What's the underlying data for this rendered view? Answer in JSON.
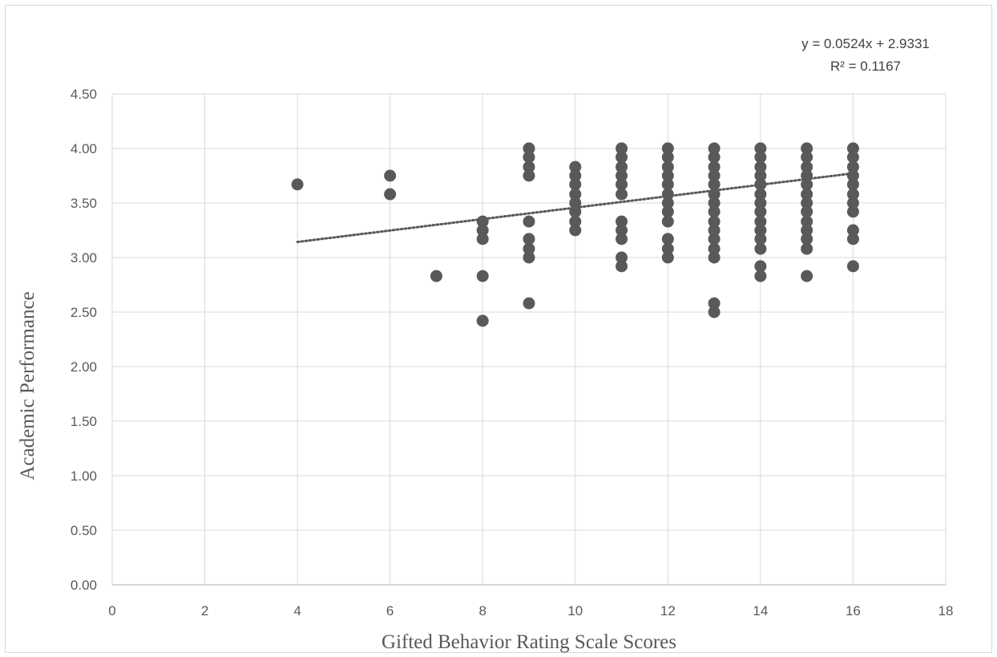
{
  "chart_data": {
    "type": "scatter",
    "title": "",
    "xlabel": "Gifted Behavior Rating Scale Scores",
    "ylabel": "Academic Performance",
    "xlim": [
      0,
      18
    ],
    "ylim": [
      0,
      4.5
    ],
    "x_ticks": [
      "0",
      "2",
      "4",
      "6",
      "8",
      "10",
      "12",
      "14",
      "16",
      "18"
    ],
    "y_ticks": [
      "0.00",
      "0.50",
      "1.00",
      "1.50",
      "2.00",
      "2.50",
      "3.00",
      "3.50",
      "4.00",
      "4.50"
    ],
    "grid": true,
    "legend": "none",
    "marker_color": "#595959",
    "trendline": {
      "type": "linear",
      "slope": 0.0524,
      "intercept": 2.9331,
      "x_range": [
        4,
        16
      ],
      "style": "dotted",
      "equation": "y = 0.0524x + 2.9331",
      "r_squared": "R² = 0.1167"
    },
    "points": [
      [
        4,
        3.67
      ],
      [
        6,
        3.75
      ],
      [
        6,
        3.58
      ],
      [
        7,
        2.83
      ],
      [
        8,
        3.33
      ],
      [
        8,
        3.25
      ],
      [
        8,
        3.17
      ],
      [
        8,
        2.83
      ],
      [
        8,
        2.42
      ],
      [
        9,
        4.0
      ],
      [
        9,
        3.92
      ],
      [
        9,
        3.83
      ],
      [
        9,
        3.75
      ],
      [
        9,
        3.33
      ],
      [
        9,
        3.17
      ],
      [
        9,
        3.08
      ],
      [
        9,
        3.0
      ],
      [
        9,
        2.58
      ],
      [
        10,
        3.83
      ],
      [
        10,
        3.75
      ],
      [
        10,
        3.67
      ],
      [
        10,
        3.58
      ],
      [
        10,
        3.5
      ],
      [
        10,
        3.42
      ],
      [
        10,
        3.33
      ],
      [
        10,
        3.25
      ],
      [
        11,
        4.0
      ],
      [
        11,
        3.92
      ],
      [
        11,
        3.83
      ],
      [
        11,
        3.75
      ],
      [
        11,
        3.67
      ],
      [
        11,
        3.58
      ],
      [
        11,
        3.33
      ],
      [
        11,
        3.25
      ],
      [
        11,
        3.17
      ],
      [
        11,
        3.0
      ],
      [
        11,
        2.92
      ],
      [
        12,
        4.0
      ],
      [
        12,
        3.92
      ],
      [
        12,
        3.83
      ],
      [
        12,
        3.75
      ],
      [
        12,
        3.67
      ],
      [
        12,
        3.58
      ],
      [
        12,
        3.5
      ],
      [
        12,
        3.42
      ],
      [
        12,
        3.33
      ],
      [
        12,
        3.17
      ],
      [
        12,
        3.08
      ],
      [
        12,
        3.0
      ],
      [
        13,
        4.0
      ],
      [
        13,
        3.92
      ],
      [
        13,
        3.83
      ],
      [
        13,
        3.75
      ],
      [
        13,
        3.67
      ],
      [
        13,
        3.58
      ],
      [
        13,
        3.5
      ],
      [
        13,
        3.42
      ],
      [
        13,
        3.33
      ],
      [
        13,
        3.25
      ],
      [
        13,
        3.17
      ],
      [
        13,
        3.08
      ],
      [
        13,
        3.0
      ],
      [
        13,
        2.58
      ],
      [
        13,
        2.5
      ],
      [
        14,
        4.0
      ],
      [
        14,
        3.92
      ],
      [
        14,
        3.83
      ],
      [
        14,
        3.75
      ],
      [
        14,
        3.67
      ],
      [
        14,
        3.58
      ],
      [
        14,
        3.5
      ],
      [
        14,
        3.42
      ],
      [
        14,
        3.33
      ],
      [
        14,
        3.25
      ],
      [
        14,
        3.17
      ],
      [
        14,
        3.08
      ],
      [
        14,
        2.92
      ],
      [
        14,
        2.83
      ],
      [
        15,
        4.0
      ],
      [
        15,
        3.92
      ],
      [
        15,
        3.83
      ],
      [
        15,
        3.75
      ],
      [
        15,
        3.67
      ],
      [
        15,
        3.58
      ],
      [
        15,
        3.5
      ],
      [
        15,
        3.42
      ],
      [
        15,
        3.33
      ],
      [
        15,
        3.25
      ],
      [
        15,
        3.17
      ],
      [
        15,
        3.08
      ],
      [
        15,
        2.83
      ],
      [
        16,
        4.0
      ],
      [
        16,
        3.92
      ],
      [
        16,
        3.83
      ],
      [
        16,
        3.75
      ],
      [
        16,
        3.67
      ],
      [
        16,
        3.58
      ],
      [
        16,
        3.5
      ],
      [
        16,
        3.42
      ],
      [
        16,
        3.25
      ],
      [
        16,
        3.17
      ],
      [
        16,
        2.92
      ]
    ]
  }
}
